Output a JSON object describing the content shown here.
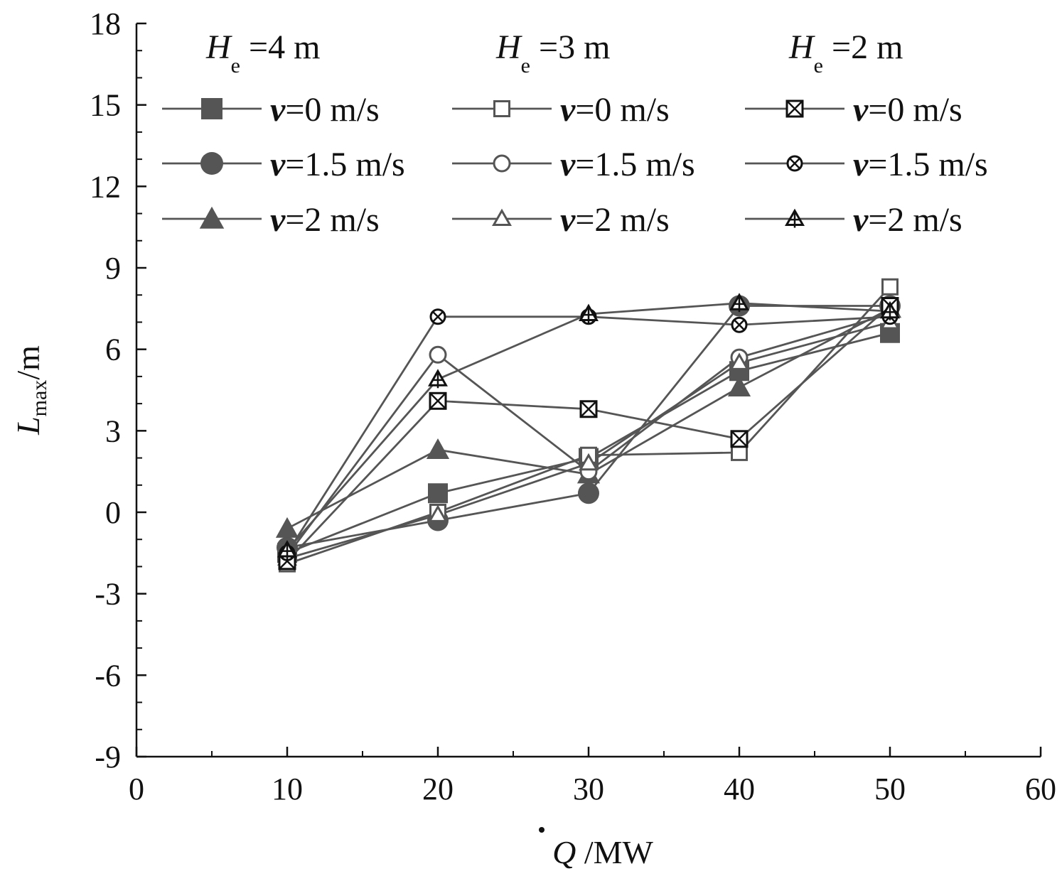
{
  "chart_data": {
    "type": "line",
    "x": [
      10,
      20,
      30,
      40,
      50
    ],
    "xlim": [
      0,
      60
    ],
    "ylim": [
      -9,
      18
    ],
    "x_ticks": [
      0,
      10,
      20,
      30,
      40,
      50,
      60
    ],
    "y_ticks": [
      -9,
      -6,
      -3,
      0,
      3,
      6,
      9,
      12,
      15,
      18
    ],
    "xlabel": {
      "symbol": "Q",
      "unit": " /MW"
    },
    "ylabel": {
      "symbol": "L",
      "subscript": "max",
      "unit": "/m"
    },
    "legend": {
      "placement": "top",
      "groups": [
        {
          "symbol": "H",
          "subscript": "e",
          "value": " =4 m"
        },
        {
          "symbol": "H",
          "subscript": "e",
          "value": " =3 m"
        },
        {
          "symbol": "H",
          "subscript": "e",
          "value": " =2 m"
        }
      ],
      "velocity_symbol": "v",
      "velocity_values": [
        "=0 m/s",
        "=1.5 m/s",
        "=2 m/s"
      ]
    },
    "series": [
      {
        "group": 0,
        "velocity": 0,
        "marker": "square-filled",
        "values": [
          -1.5,
          0.7,
          2.0,
          5.2,
          6.6
        ]
      },
      {
        "group": 0,
        "velocity": 1,
        "marker": "circle-filled",
        "values": [
          -1.3,
          -0.3,
          0.7,
          7.6,
          7.6
        ]
      },
      {
        "group": 0,
        "velocity": 2,
        "marker": "triangle-filled",
        "values": [
          -0.6,
          2.3,
          1.4,
          4.6,
          7.5
        ]
      },
      {
        "group": 1,
        "velocity": 0,
        "marker": "square-open",
        "values": [
          -1.9,
          0.0,
          2.1,
          2.2,
          8.3
        ]
      },
      {
        "group": 1,
        "velocity": 1,
        "marker": "circle-open",
        "values": [
          -1.6,
          5.8,
          1.5,
          5.7,
          7.3
        ]
      },
      {
        "group": 1,
        "velocity": 2,
        "marker": "triangle-open",
        "values": [
          -1.7,
          -0.1,
          1.8,
          5.5,
          7.0
        ]
      },
      {
        "group": 2,
        "velocity": 0,
        "marker": "square-x",
        "values": [
          -1.8,
          4.1,
          3.8,
          2.7,
          7.6
        ]
      },
      {
        "group": 2,
        "velocity": 1,
        "marker": "circle-x",
        "values": [
          -1.5,
          7.2,
          7.2,
          6.9,
          7.2
        ]
      },
      {
        "group": 2,
        "velocity": 2,
        "marker": "triangle-plus",
        "values": [
          -1.4,
          4.9,
          7.3,
          7.7,
          7.4
        ]
      }
    ],
    "colors": {
      "line": "#555555",
      "marker_fill": "#555555",
      "axis": "#111111",
      "x_marker": "#111111"
    }
  }
}
